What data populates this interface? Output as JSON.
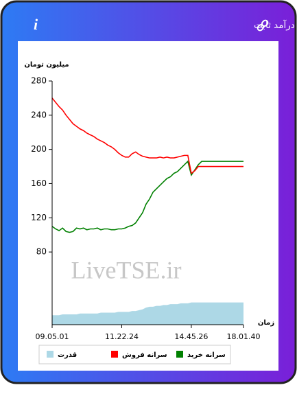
{
  "header": {
    "title": "سرانه ی خرید و فروش حقیقی در صندوق های درآمد ثابت"
  },
  "chart_data": {
    "type": "line",
    "y_label": "میلیون تومان",
    "x_label": "زمان",
    "watermark": "LiveTSE.ir",
    "categories": [
      "09.05.01",
      null,
      null,
      null,
      null,
      null,
      null,
      null,
      null,
      null,
      null,
      null,
      null,
      null,
      null,
      null,
      null,
      null,
      null,
      null,
      "11.22.24",
      null,
      null,
      null,
      null,
      null,
      null,
      null,
      null,
      null,
      null,
      null,
      null,
      null,
      null,
      null,
      null,
      null,
      null,
      null,
      "14.45.26",
      null,
      null,
      null,
      null,
      null,
      null,
      null,
      null,
      null,
      null,
      null,
      null,
      null,
      null,
      "18.01.40"
    ],
    "ylim": [
      -5,
      280
    ],
    "yticks": [
      80,
      120,
      160,
      200,
      240,
      280
    ],
    "series": [
      {
        "name": "سرانه خرید",
        "color": "#008000",
        "kind": "line",
        "values": [
          110,
          107,
          105,
          108,
          104,
          103,
          104,
          108,
          107,
          108,
          106,
          107,
          107,
          108,
          106,
          107,
          107,
          106,
          106,
          107,
          107,
          108,
          110,
          111,
          114,
          120,
          126,
          136,
          142,
          150,
          154,
          158,
          162,
          166,
          168,
          172,
          174,
          178,
          182,
          186,
          170,
          176,
          182,
          186,
          186,
          186,
          186,
          186,
          186,
          186,
          186,
          186,
          186,
          186,
          186,
          186
        ]
      },
      {
        "name": "سرانه فروش",
        "color": "#ff0000",
        "kind": "line",
        "values": [
          260,
          255,
          250,
          246,
          240,
          235,
          230,
          227,
          224,
          222,
          219,
          217,
          215,
          212,
          210,
          208,
          205,
          203,
          200,
          196,
          193,
          191,
          191,
          195,
          197,
          194,
          192,
          191,
          190,
          190,
          190,
          191,
          190,
          191,
          190,
          190,
          191,
          192,
          193,
          193,
          172,
          175,
          180,
          180,
          180,
          180,
          180,
          180,
          180,
          180,
          180,
          180,
          180,
          180,
          180,
          180
        ]
      },
      {
        "name": "قدرت",
        "color": "#add8e6",
        "kind": "area",
        "values": [
          6,
          6,
          6,
          7,
          7,
          7,
          7,
          7,
          8,
          8,
          8,
          8,
          8,
          8,
          9,
          9,
          9,
          9,
          9,
          10,
          10,
          10,
          10,
          11,
          11,
          12,
          13,
          15,
          16,
          16,
          17,
          17,
          18,
          18,
          19,
          19,
          19,
          20,
          20,
          20,
          21,
          21,
          21,
          21,
          21,
          21,
          21,
          21,
          21,
          21,
          21,
          21,
          21,
          21,
          21,
          21
        ]
      }
    ]
  }
}
